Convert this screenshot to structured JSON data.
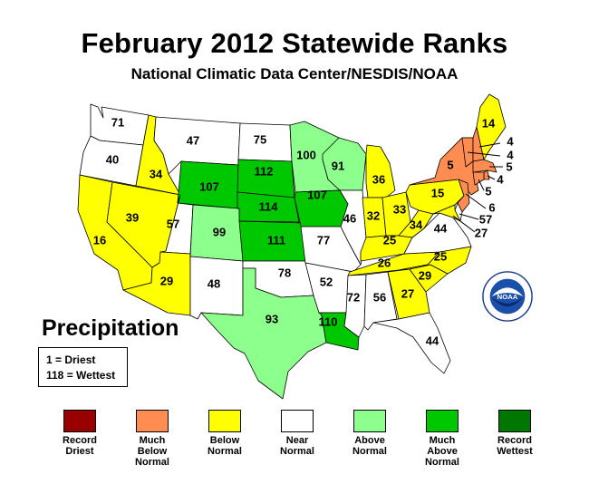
{
  "title": "February 2012 Statewide Ranks",
  "subtitle": "National Climatic Data Center/NESDIS/NOAA",
  "section_label": "Precipitation",
  "key": {
    "low": "1 = Driest",
    "high": "118 = Wettest"
  },
  "legend": [
    {
      "label": "Record\nDriest",
      "color": "#990000"
    },
    {
      "label": "Much\nBelow\nNormal",
      "color": "#ff8c50"
    },
    {
      "label": "Below\nNormal",
      "color": "#ffff00"
    },
    {
      "label": "Near\nNormal",
      "color": "#ffffff"
    },
    {
      "label": "Above\nNormal",
      "color": "#8cff8c"
    },
    {
      "label": "Much\nAbove\nNormal",
      "color": "#00c800"
    },
    {
      "label": "Record\nWettest",
      "color": "#007800"
    }
  ],
  "logo_text": "NOAA",
  "states": [
    {
      "state": "WA",
      "rank": "71",
      "category": "Near Normal"
    },
    {
      "state": "OR",
      "rank": "40",
      "category": "Near Normal"
    },
    {
      "state": "CA",
      "rank": "16",
      "category": "Below Normal"
    },
    {
      "state": "ID",
      "rank": "34",
      "category": "Below Normal"
    },
    {
      "state": "NV",
      "rank": "39",
      "category": "Below Normal"
    },
    {
      "state": "MT",
      "rank": "47",
      "category": "Near Normal"
    },
    {
      "state": "WY",
      "rank": "107",
      "category": "Much Above Normal"
    },
    {
      "state": "UT",
      "rank": "57",
      "category": "Near Normal"
    },
    {
      "state": "AZ",
      "rank": "29",
      "category": "Below Normal"
    },
    {
      "state": "CO",
      "rank": "99",
      "category": "Above Normal"
    },
    {
      "state": "NM",
      "rank": "48",
      "category": "Near Normal"
    },
    {
      "state": "ND",
      "rank": "75",
      "category": "Near Normal"
    },
    {
      "state": "SD",
      "rank": "112",
      "category": "Much Above Normal"
    },
    {
      "state": "NE",
      "rank": "114",
      "category": "Much Above Normal"
    },
    {
      "state": "KS",
      "rank": "111",
      "category": "Much Above Normal"
    },
    {
      "state": "OK",
      "rank": "78",
      "category": "Near Normal"
    },
    {
      "state": "TX",
      "rank": "93",
      "category": "Above Normal"
    },
    {
      "state": "MN",
      "rank": "100",
      "category": "Above Normal"
    },
    {
      "state": "IA",
      "rank": "107",
      "category": "Much Above Normal"
    },
    {
      "state": "MO",
      "rank": "77",
      "category": "Near Normal"
    },
    {
      "state": "AR",
      "rank": "52",
      "category": "Near Normal"
    },
    {
      "state": "LA",
      "rank": "110",
      "category": "Much Above Normal"
    },
    {
      "state": "WI",
      "rank": "91",
      "category": "Above Normal"
    },
    {
      "state": "IL",
      "rank": "46",
      "category": "Near Normal"
    },
    {
      "state": "MI",
      "rank": "36",
      "category": "Below Normal"
    },
    {
      "state": "IN",
      "rank": "32",
      "category": "Below Normal"
    },
    {
      "state": "OH",
      "rank": "33",
      "category": "Below Normal"
    },
    {
      "state": "KY",
      "rank": "25",
      "category": "Below Normal"
    },
    {
      "state": "TN",
      "rank": "26",
      "category": "Below Normal"
    },
    {
      "state": "MS",
      "rank": "72",
      "category": "Near Normal"
    },
    {
      "state": "AL",
      "rank": "56",
      "category": "Near Normal"
    },
    {
      "state": "GA",
      "rank": "27",
      "category": "Below Normal"
    },
    {
      "state": "FL",
      "rank": "44",
      "category": "Near Normal"
    },
    {
      "state": "SC",
      "rank": "29",
      "category": "Below Normal"
    },
    {
      "state": "NC",
      "rank": "25",
      "category": "Below Normal"
    },
    {
      "state": "VA",
      "rank": "44",
      "category": "Near Normal"
    },
    {
      "state": "WV",
      "rank": "34",
      "category": "Below Normal"
    },
    {
      "state": "PA",
      "rank": "15",
      "category": "Below Normal"
    },
    {
      "state": "NY",
      "rank": "5",
      "category": "Much Below Normal"
    },
    {
      "state": "VT",
      "rank": "4",
      "category": "Much Below Normal"
    },
    {
      "state": "NH",
      "rank": "4",
      "category": "Much Below Normal"
    },
    {
      "state": "ME",
      "rank": "14",
      "category": "Below Normal"
    },
    {
      "state": "MA",
      "rank": "5",
      "category": "Much Below Normal"
    },
    {
      "state": "RI",
      "rank": "4",
      "category": "Much Below Normal"
    },
    {
      "state": "CT",
      "rank": "5",
      "category": "Much Below Normal"
    },
    {
      "state": "NJ",
      "rank": "6",
      "category": "Much Below Normal"
    },
    {
      "state": "DE",
      "rank": "57",
      "category": "Near Normal"
    },
    {
      "state": "MD",
      "rank": "27",
      "category": "Below Normal"
    }
  ]
}
